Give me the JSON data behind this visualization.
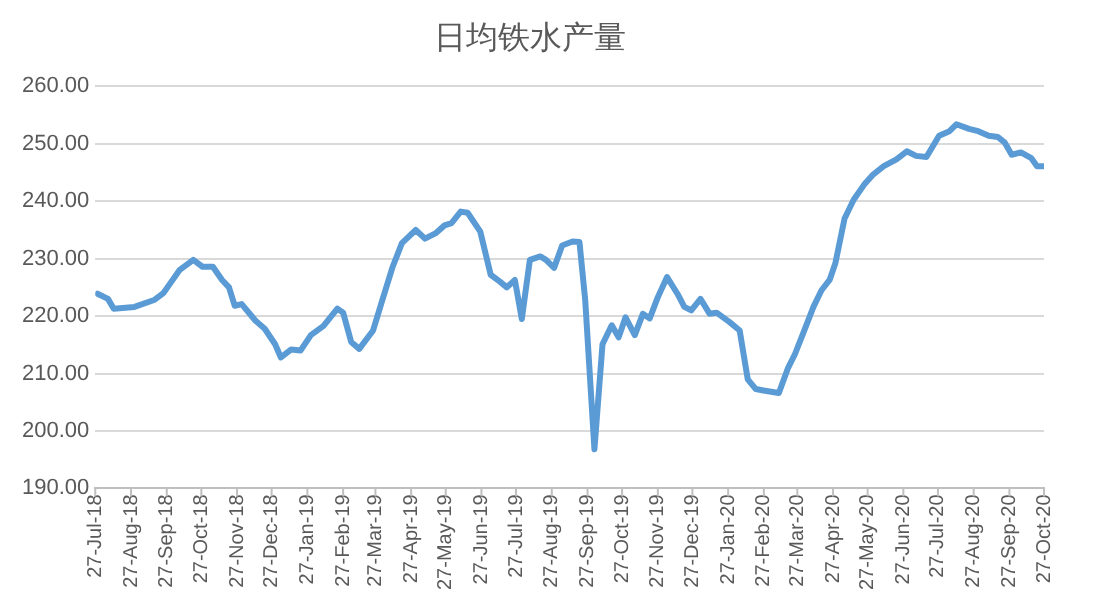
{
  "chart_data": {
    "type": "line",
    "title": "日均铁水产量",
    "x": [
      "2018-07-29",
      "2018-08-07",
      "2018-08-12",
      "2018-08-30",
      "2018-09-16",
      "2018-09-24",
      "2018-09-30",
      "2018-10-08",
      "2018-10-20",
      "2018-10-28",
      "2018-11-06",
      "2018-11-14",
      "2018-11-20",
      "2018-11-25",
      "2018-12-01",
      "2018-12-13",
      "2018-12-21",
      "2018-12-30",
      "2019-01-04",
      "2019-01-13",
      "2019-01-21",
      "2019-01-30",
      "2019-02-10",
      "2019-02-22",
      "2019-02-27",
      "2019-03-06",
      "2019-03-13",
      "2019-03-25",
      "2019-04-02",
      "2019-04-11",
      "2019-04-19",
      "2019-05-01",
      "2019-05-09",
      "2019-05-18",
      "2019-05-26",
      "2019-06-01",
      "2019-06-09",
      "2019-06-15",
      "2019-06-26",
      "2019-07-05",
      "2019-07-13",
      "2019-07-19",
      "2019-07-26",
      "2019-08-01",
      "2019-08-08",
      "2019-08-17",
      "2019-08-22",
      "2019-08-29",
      "2019-09-05",
      "2019-09-14",
      "2019-09-20",
      "2019-09-25",
      "2019-10-03",
      "2019-10-10",
      "2019-10-18",
      "2019-10-24",
      "2019-10-30",
      "2019-11-07",
      "2019-11-14",
      "2019-11-20",
      "2019-11-27",
      "2019-12-05",
      "2019-12-14",
      "2019-12-20",
      "2019-12-26",
      "2020-01-03",
      "2020-01-11",
      "2020-01-17",
      "2020-01-28",
      "2020-02-06",
      "2020-02-13",
      "2020-02-20",
      "2020-02-28",
      "2020-03-11",
      "2020-03-19",
      "2020-03-25",
      "2020-04-03",
      "2020-04-10",
      "2020-04-17",
      "2020-04-24",
      "2020-04-29",
      "2020-05-07",
      "2020-05-15",
      "2020-05-24",
      "2020-06-01",
      "2020-06-10",
      "2020-06-21",
      "2020-06-30",
      "2020-07-08",
      "2020-07-17",
      "2020-07-28",
      "2020-08-06",
      "2020-08-12",
      "2020-08-23",
      "2020-08-31",
      "2020-09-09",
      "2020-09-17",
      "2020-09-23",
      "2020-09-29",
      "2020-10-07",
      "2020-10-16",
      "2020-10-21",
      "2020-10-27"
    ],
    "series": [
      {
        "color": "#5b9bd5",
        "values": [
          223.9,
          223.0,
          221.3,
          221.6,
          222.8,
          224.0,
          225.7,
          228.0,
          229.8,
          228.6,
          228.6,
          226.3,
          225.0,
          221.8,
          222.1,
          219.2,
          217.8,
          215.1,
          212.8,
          214.2,
          214.0,
          216.7,
          218.3,
          221.3,
          220.6,
          215.5,
          214.3,
          217.5,
          222.8,
          228.6,
          232.7,
          235.0,
          233.5,
          234.4,
          235.8,
          236.2,
          238.2,
          238.0,
          234.7,
          227.2,
          226.0,
          225.0,
          226.3,
          219.5,
          229.8,
          230.4,
          229.8,
          228.4,
          232.3,
          233.0,
          232.9,
          222.8,
          196.8,
          215.1,
          218.4,
          216.3,
          219.8,
          216.7,
          220.4,
          219.6,
          223.3,
          226.8,
          223.9,
          221.6,
          221.0,
          223.0,
          220.4,
          220.6,
          219.0,
          217.5,
          209.0,
          207.3,
          207.0,
          206.6,
          211.0,
          213.4,
          218.0,
          221.6,
          224.5,
          226.3,
          229.2,
          237.0,
          240.3,
          242.9,
          244.7,
          246.1,
          247.3,
          248.7,
          247.9,
          247.7,
          251.4,
          252.2,
          253.4,
          252.6,
          252.2,
          251.4,
          251.2,
          250.2,
          248.1,
          248.5,
          247.5,
          246.1,
          246.1
        ]
      }
    ],
    "xlim": [
      "2018-07-27",
      "2020-10-27"
    ],
    "xticks": [
      {
        "value": "2018-07-27",
        "label": "27-Jul-18"
      },
      {
        "value": "2018-08-27",
        "label": "27-Aug-18"
      },
      {
        "value": "2018-09-27",
        "label": "27-Sep-18"
      },
      {
        "value": "2018-10-27",
        "label": "27-Oct-18"
      },
      {
        "value": "2018-11-27",
        "label": "27-Nov-18"
      },
      {
        "value": "2018-12-27",
        "label": "27-Dec-18"
      },
      {
        "value": "2019-01-27",
        "label": "27-Jan-19"
      },
      {
        "value": "2019-02-27",
        "label": "27-Feb-19"
      },
      {
        "value": "2019-03-27",
        "label": "27-Mar-19"
      },
      {
        "value": "2019-04-27",
        "label": "27-Apr-19"
      },
      {
        "value": "2019-05-27",
        "label": "27-May-19"
      },
      {
        "value": "2019-06-27",
        "label": "27-Jun-19"
      },
      {
        "value": "2019-07-27",
        "label": "27-Jul-19"
      },
      {
        "value": "2019-08-27",
        "label": "27-Aug-19"
      },
      {
        "value": "2019-09-27",
        "label": "27-Sep-19"
      },
      {
        "value": "2019-10-27",
        "label": "27-Oct-19"
      },
      {
        "value": "2019-11-27",
        "label": "27-Nov-19"
      },
      {
        "value": "2019-12-27",
        "label": "27-Dec-19"
      },
      {
        "value": "2020-01-27",
        "label": "27-Jan-20"
      },
      {
        "value": "2020-02-27",
        "label": "27-Feb-20"
      },
      {
        "value": "2020-03-27",
        "label": "27-Mar-20"
      },
      {
        "value": "2020-04-27",
        "label": "27-Apr-20"
      },
      {
        "value": "2020-05-27",
        "label": "27-May-20"
      },
      {
        "value": "2020-06-27",
        "label": "27-Jun-20"
      },
      {
        "value": "2020-07-27",
        "label": "27-Jul-20"
      },
      {
        "value": "2020-08-27",
        "label": "27-Aug-20"
      },
      {
        "value": "2020-09-27",
        "label": "27-Sep-20"
      },
      {
        "value": "2020-10-27",
        "label": "27-Oct-20"
      }
    ],
    "ylim": [
      190,
      260
    ],
    "yticks": [
      {
        "value": 190,
        "label": "190.00"
      },
      {
        "value": 200,
        "label": "200.00"
      },
      {
        "value": 210,
        "label": "210.00"
      },
      {
        "value": 220,
        "label": "220.00"
      },
      {
        "value": 230,
        "label": "230.00"
      },
      {
        "value": 240,
        "label": "240.00"
      },
      {
        "value": 250,
        "label": "250.00"
      },
      {
        "value": 260,
        "label": "260.00"
      }
    ],
    "grid": "y",
    "legend": false,
    "marker": "none",
    "line_style": "solid"
  }
}
